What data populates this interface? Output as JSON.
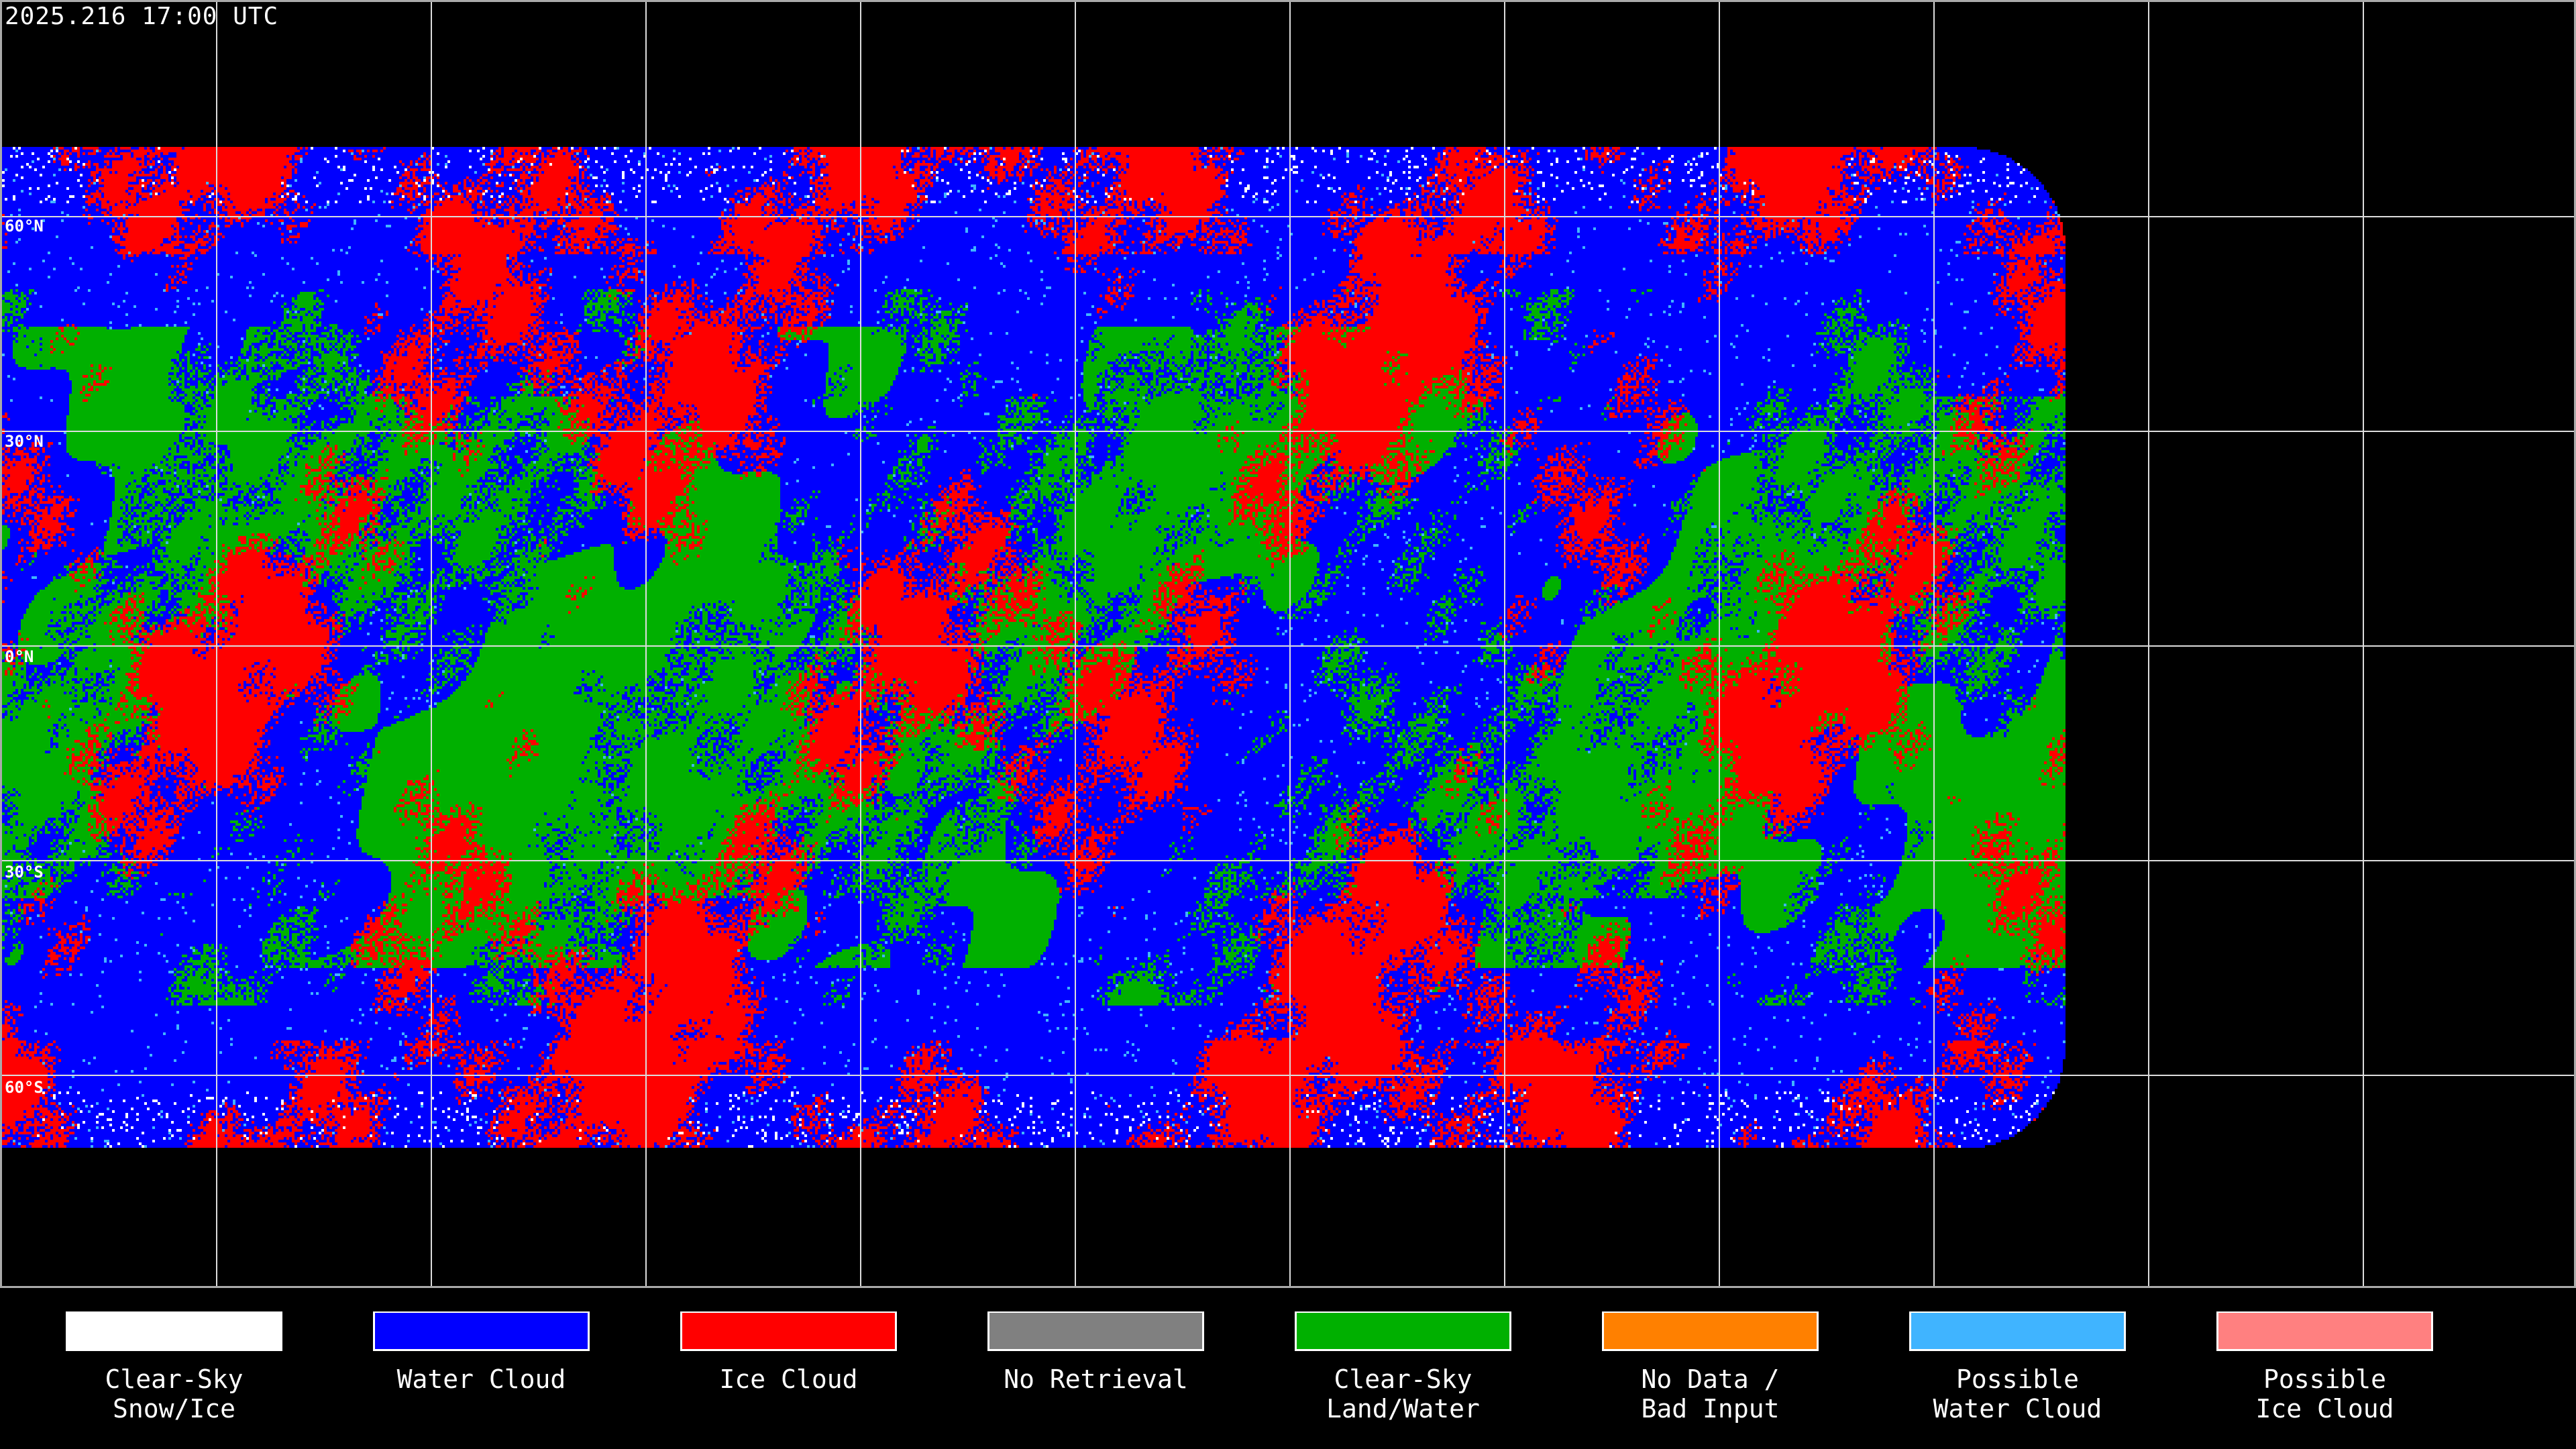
{
  "title": "2025.216 17:00 UTC",
  "latitude_labels": [
    "60°N",
    "30°N",
    "0°N",
    "30°S",
    "60°S"
  ],
  "legend": [
    {
      "line1": "Clear-Sky",
      "line2": "Snow/Ice",
      "color": "#ffffff"
    },
    {
      "line1": "Water Cloud",
      "line2": "",
      "color": "#0000ff"
    },
    {
      "line1": "Ice Cloud",
      "line2": "",
      "color": "#ff0000"
    },
    {
      "line1": "No Retrieval",
      "line2": "",
      "color": "#808080"
    },
    {
      "line1": "Clear-Sky",
      "line2": "Land/Water",
      "color": "#00b000"
    },
    {
      "line1": "No Data /",
      "line2": "Bad Input",
      "color": "#ff8000"
    },
    {
      "line1": "Possible",
      "line2": "Water Cloud",
      "color": "#40b4ff"
    },
    {
      "line1": "Possible",
      "line2": "Ice Cloud",
      "color": "#ff8080"
    }
  ]
}
